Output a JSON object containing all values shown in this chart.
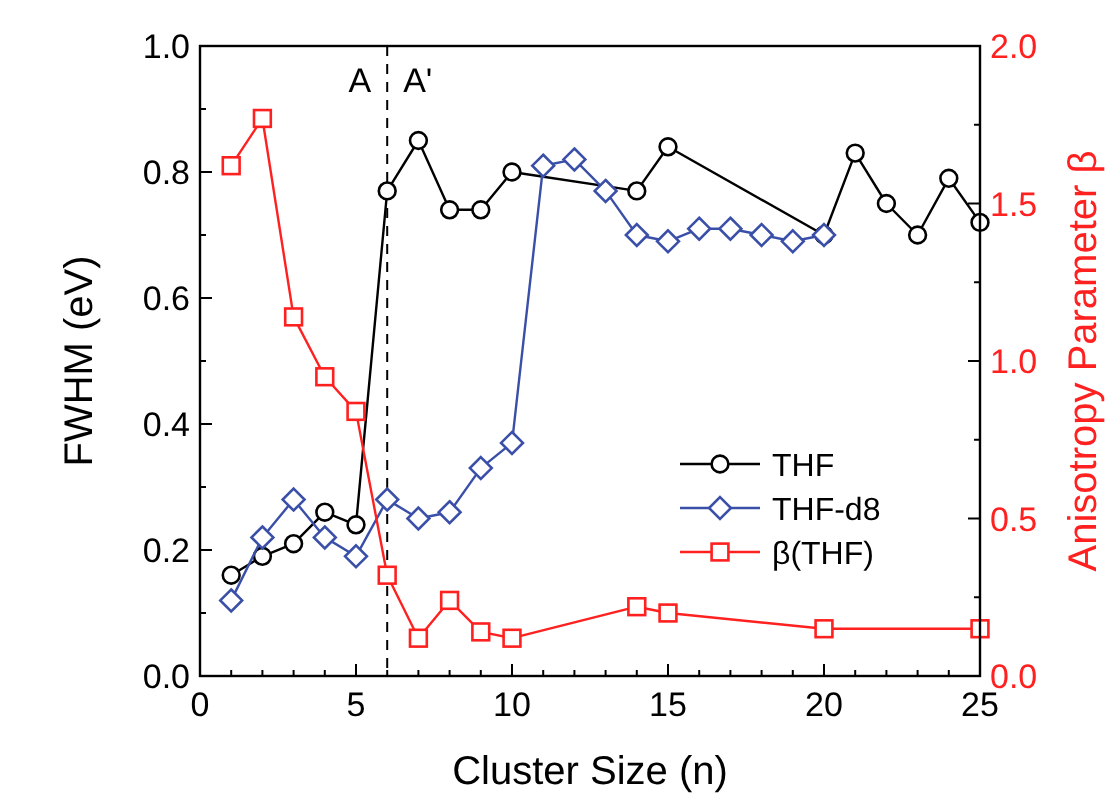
{
  "chart_data": {
    "type": "line",
    "xlabel": "Cluster Size (n)",
    "ylabel": "FWHM (eV)",
    "y2label": "Anisotropy Parameter β",
    "xlim": [
      0,
      25
    ],
    "xticks": [
      0,
      {
        "value": 1,
        "label": null
      },
      {
        "value": 2,
        "label": null
      },
      {
        "value": 3,
        "label": null
      },
      {
        "value": 4,
        "label": null
      },
      5,
      {
        "value": 6,
        "label": null
      },
      {
        "value": 7,
        "label": null
      },
      {
        "value": 8,
        "label": null
      },
      {
        "value": 9,
        "label": null
      },
      10,
      {
        "value": 11,
        "label": null
      },
      {
        "value": 12,
        "label": null
      },
      {
        "value": 13,
        "label": null
      },
      {
        "value": 14,
        "label": null
      },
      15,
      {
        "value": 16,
        "label": null
      },
      {
        "value": 17,
        "label": null
      },
      {
        "value": 18,
        "label": null
      },
      {
        "value": 19,
        "label": null
      },
      20,
      {
        "value": 21,
        "label": null
      },
      {
        "value": 22,
        "label": null
      },
      {
        "value": 23,
        "label": null
      },
      {
        "value": 24,
        "label": null
      },
      25
    ],
    "ylim": [
      0,
      1
    ],
    "yticks": [
      {
        "value": 0,
        "label": "0.0"
      },
      {
        "value": 0.1,
        "label": null
      },
      {
        "value": 0.2,
        "label": "0.2"
      },
      {
        "value": 0.3,
        "label": null
      },
      {
        "value": 0.4,
        "label": "0.4"
      },
      {
        "value": 0.5,
        "label": null
      },
      {
        "value": 0.6,
        "label": "0.6"
      },
      {
        "value": 0.7,
        "label": null
      },
      {
        "value": 0.8,
        "label": "0.8"
      },
      {
        "value": 0.9,
        "label": null
      },
      {
        "value": 1,
        "label": "1.0"
      }
    ],
    "y2lim": [
      0,
      2
    ],
    "y2ticks": [
      {
        "value": 0,
        "label": "0.0"
      },
      {
        "value": 0.25,
        "label": null
      },
      {
        "value": 0.5,
        "label": "0.5"
      },
      {
        "value": 0.75,
        "label": null
      },
      {
        "value": 1,
        "label": "1.0"
      },
      {
        "value": 1.25,
        "label": null
      },
      {
        "value": 1.5,
        "label": "1.5"
      },
      {
        "value": 1.75,
        "label": null
      },
      {
        "value": 2,
        "label": "2.0"
      }
    ],
    "grid": false,
    "legend": "right",
    "line_style": "solid",
    "series": [
      {
        "name": "THF",
        "color": "#000000",
        "marker": "circle",
        "x": [
          1,
          2,
          3,
          4,
          5,
          6,
          7,
          8,
          9,
          10,
          14,
          15,
          20,
          21,
          22,
          23,
          24,
          25
        ],
        "values": [
          0.16,
          0.19,
          0.21,
          0.26,
          0.24,
          0.77,
          0.85,
          0.74,
          0.74,
          0.8,
          0.77,
          0.84,
          0.7,
          0.83,
          0.75,
          0.7,
          0.79,
          0.72
        ]
      },
      {
        "name": "THF-d8",
        "color": "#3a4fa8",
        "marker": "diamond",
        "x": [
          1,
          2,
          3,
          4,
          5,
          6,
          7,
          8,
          9,
          10,
          11,
          12,
          13,
          14,
          15,
          16,
          17,
          18,
          19,
          20
        ],
        "values": [
          0.12,
          0.22,
          0.28,
          0.22,
          0.19,
          0.28,
          0.25,
          0.26,
          0.33,
          0.37,
          0.81,
          0.82,
          0.77,
          0.7,
          0.69,
          0.71,
          0.71,
          0.7,
          0.69,
          0.7
        ]
      },
      {
        "name": "β(THF)",
        "color": "#ff2020",
        "marker": "square",
        "axis": "y2",
        "x": [
          1,
          2,
          3,
          4,
          5,
          6,
          7,
          8,
          9,
          10,
          14,
          15,
          20,
          25
        ],
        "values": [
          1.62,
          1.77,
          1.14,
          0.95,
          0.84,
          0.32,
          0.12,
          0.24,
          0.14,
          0.12,
          0.22,
          0.2,
          0.15,
          0.15
        ]
      }
    ],
    "ref_lines": [
      {
        "axis": "x",
        "value": 6,
        "color": "#000000",
        "line_style": "dashed"
      }
    ],
    "annotations": [
      "A",
      "A'"
    ]
  }
}
